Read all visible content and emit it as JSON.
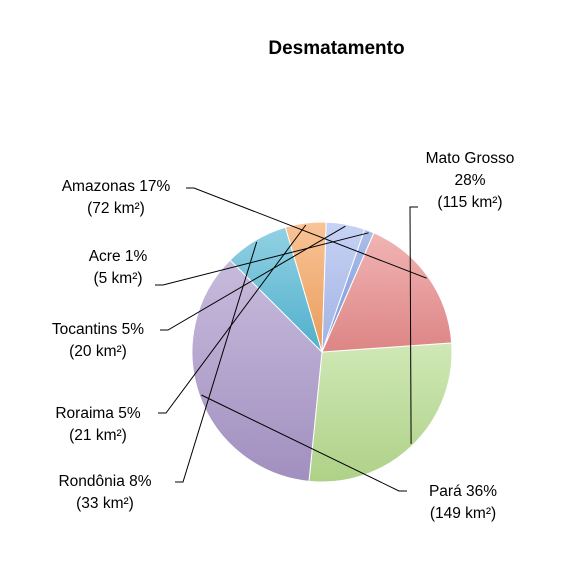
{
  "chart_data": {
    "type": "pie",
    "title": "Desmatamento",
    "slices": [
      {
        "name": "Mato Grosso",
        "percent_label": "28%",
        "value": 115,
        "unit_label": "(115 km²)",
        "color": "#b7dc8e"
      },
      {
        "name": "Pará",
        "percent_label": "36%",
        "value": 149,
        "unit_label": "(149 km²)",
        "color": "#a996c9"
      },
      {
        "name": "Rondônia",
        "percent_label": "8%",
        "value": 33,
        "unit_label": "(33 km²)",
        "color": "#55b8d6"
      },
      {
        "name": "Roraima",
        "percent_label": "5%",
        "value": 21,
        "unit_label": "(21 km²)",
        "color": "#f5a45f"
      },
      {
        "name": "Tocantins",
        "percent_label": "5%",
        "value": 20,
        "unit_label": "(20 km²)",
        "color": "#a9bbef"
      },
      {
        "name": "Acre",
        "percent_label": "1%",
        "value": 5,
        "unit_label": "(5 km²)",
        "color": "#7f9de0"
      },
      {
        "name": "Amazonas",
        "percent_label": "17%",
        "value": 72,
        "unit_label": "(72 km²)",
        "color": "#e98c8c"
      }
    ],
    "start_angle_deg": -4,
    "direction": "clockwise"
  }
}
